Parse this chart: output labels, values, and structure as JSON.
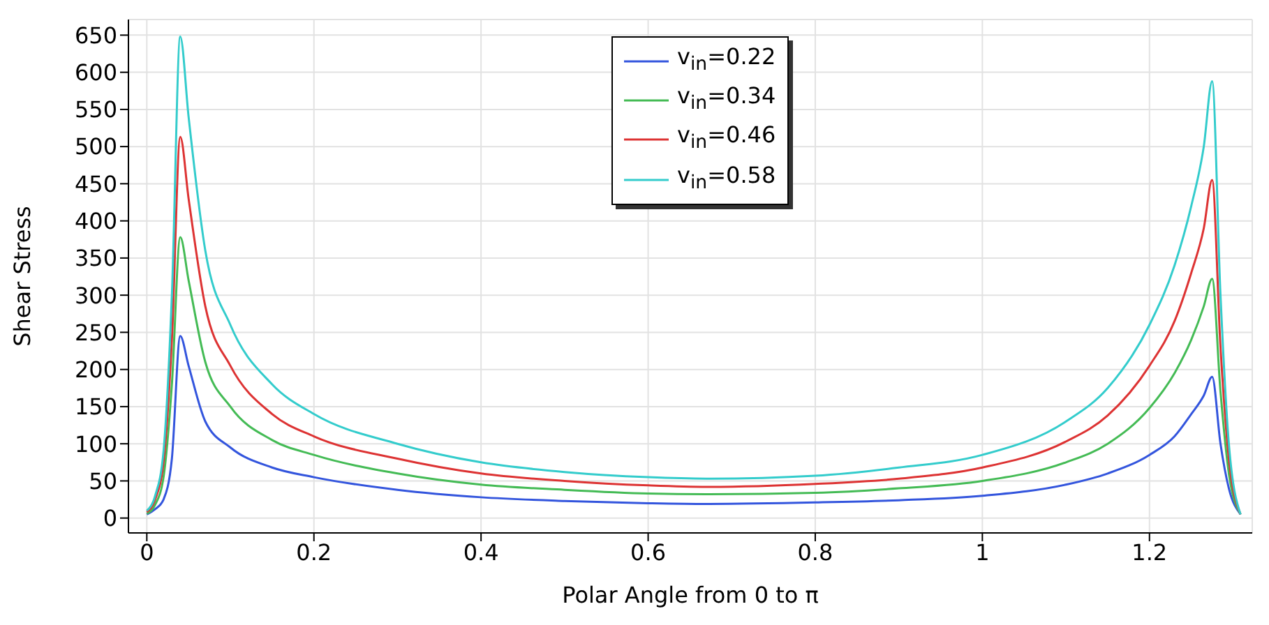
{
  "chart_data": {
    "type": "line",
    "xlabel": "Polar Angle from 0 to π",
    "ylabel": "Shear Stress",
    "x": [
      0,
      0.01,
      0.02,
      0.03,
      0.04,
      0.05,
      0.07,
      0.1,
      0.15,
      0.2,
      0.3,
      0.4,
      0.5,
      0.6,
      0.67,
      0.8,
      0.9,
      1.0,
      1.1,
      1.15,
      1.2,
      1.23,
      1.25,
      1.265,
      1.275,
      1.285,
      1.295,
      1.309
    ],
    "series": [
      {
        "name": "v$_{in}$=0.22",
        "color": "#3355dd",
        "values": [
          5,
          12,
          25,
          80,
          245,
          205,
          130,
          95,
          68,
          55,
          38,
          28,
          23,
          20,
          19,
          21,
          24,
          30,
          45,
          60,
          85,
          110,
          140,
          165,
          190,
          100,
          40,
          5
        ]
      },
      {
        "name": "v$_{in}$=0.34",
        "color": "#44bb55",
        "values": [
          6,
          18,
          55,
          180,
          378,
          320,
          210,
          150,
          105,
          85,
          60,
          45,
          38,
          33,
          32,
          34,
          40,
          50,
          75,
          100,
          148,
          195,
          240,
          285,
          322,
          170,
          60,
          5
        ]
      },
      {
        "name": "v$_{in}$=0.46",
        "color": "#dd3333",
        "values": [
          8,
          25,
          75,
          240,
          513,
          430,
          285,
          205,
          140,
          110,
          80,
          60,
          50,
          44,
          42,
          46,
          53,
          68,
          103,
          138,
          205,
          265,
          330,
          390,
          455,
          230,
          80,
          5
        ]
      },
      {
        "name": "v$_{in}$=0.58",
        "color": "#33cccc",
        "values": [
          10,
          30,
          90,
          300,
          648,
          540,
          360,
          260,
          180,
          140,
          100,
          75,
          62,
          55,
          53,
          57,
          68,
          85,
          130,
          175,
          260,
          340,
          420,
          500,
          588,
          300,
          100,
          5
        ]
      }
    ],
    "xlim": [
      -0.022,
      1.323
    ],
    "ylim": [
      -20,
      671
    ],
    "xticks": [
      0,
      0.2,
      0.4,
      0.6,
      0.8,
      1,
      1.2
    ],
    "yticks": [
      0,
      50,
      100,
      150,
      200,
      250,
      300,
      350,
      400,
      450,
      500,
      550,
      600,
      650
    ],
    "grid": true,
    "legend": "top",
    "marker": "none",
    "line_style": "solid"
  }
}
